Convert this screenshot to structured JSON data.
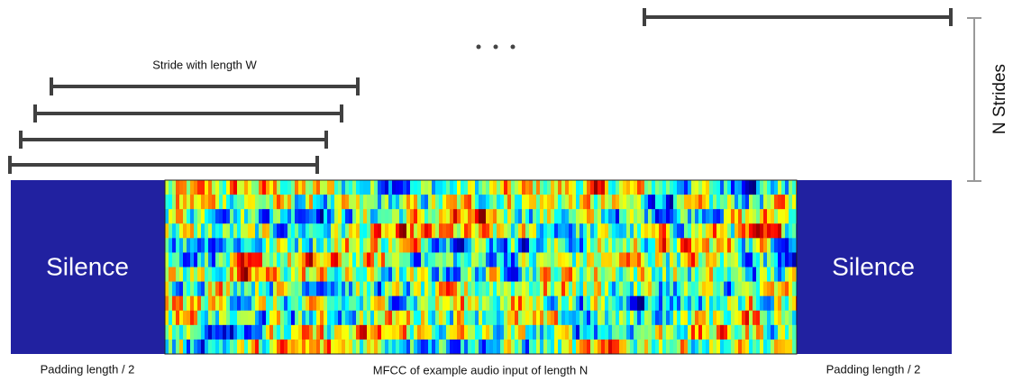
{
  "diagram": {
    "stride_label": "Stride with length W",
    "n_strides_label": "N Strides",
    "left_block": {
      "label": "Silence",
      "caption": "Padding length / 2"
    },
    "right_block": {
      "label": "Silence",
      "caption": "Padding length / 2"
    },
    "mfcc_caption": "MFCC of example audio input of length N"
  }
}
